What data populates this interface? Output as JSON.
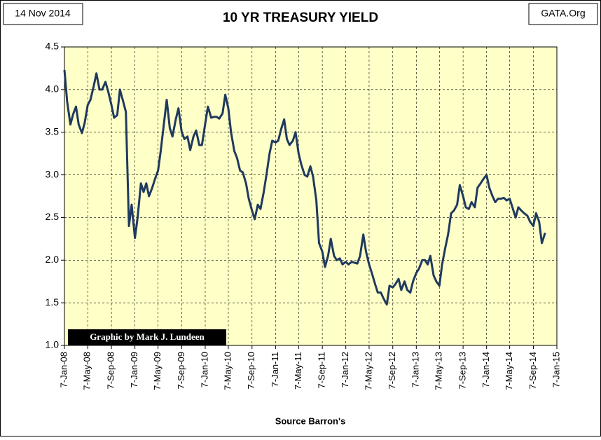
{
  "chart_data": {
    "type": "line",
    "title": "10 YR TREASURY YIELD",
    "date_label": "14 Nov 2014",
    "source_label": "GATA.Org",
    "credit": "Graphic by Mark J. Lundeen",
    "xlabel": "Source Barron's",
    "color": "#1f3a5f",
    "plot_background": "#ffffc8",
    "grid": true,
    "ylim": [
      1,
      4.5
    ],
    "yticks": [
      {
        "value": 1,
        "label": "1.0"
      },
      1.5,
      {
        "value": 2,
        "label": "2.0"
      },
      2.5,
      {
        "value": 3,
        "label": "3.0"
      },
      3.5,
      {
        "value": 4,
        "label": "4.0"
      },
      4.5
    ],
    "xlim": [
      "2008-01-07",
      "2015-01-07"
    ],
    "xticks": [
      {
        "value": "2008-01-07",
        "label": "7-Jan-08"
      },
      {
        "value": "2008-05-07",
        "label": "7-May-08"
      },
      {
        "value": "2008-09-07",
        "label": "7-Sep-08"
      },
      {
        "value": "2009-01-07",
        "label": "7-Jan-09"
      },
      {
        "value": "2009-05-07",
        "label": "7-May-09"
      },
      {
        "value": "2009-09-07",
        "label": "7-Sep-09"
      },
      {
        "value": "2010-01-07",
        "label": "7-Jan-10"
      },
      {
        "value": "2010-05-07",
        "label": "7-May-10"
      },
      {
        "value": "2010-09-07",
        "label": "7-Sep-10"
      },
      {
        "value": "2011-01-07",
        "label": "7-Jan-11"
      },
      {
        "value": "2011-05-07",
        "label": "7-May-11"
      },
      {
        "value": "2011-09-07",
        "label": "7-Sep-11"
      },
      {
        "value": "2012-01-07",
        "label": "7-Jan-12"
      },
      {
        "value": "2012-05-07",
        "label": "7-May-12"
      },
      {
        "value": "2012-09-07",
        "label": "7-Sep-12"
      },
      {
        "value": "2013-01-07",
        "label": "7-Jan-13"
      },
      {
        "value": "2013-05-07",
        "label": "7-May-13"
      },
      {
        "value": "2013-09-07",
        "label": "7-Sep-13"
      },
      {
        "value": "2014-01-07",
        "label": "7-Jan-14"
      },
      {
        "value": "2014-05-07",
        "label": "7-May-14"
      },
      {
        "value": "2014-09-07",
        "label": "7-Sep-14"
      },
      {
        "value": "2015-01-07",
        "label": "7-Jan-15"
      }
    ],
    "x": [
      "2008-01-07",
      "2008-01-21",
      "2008-02-07",
      "2008-02-21",
      "2008-03-07",
      "2008-03-21",
      "2008-04-07",
      "2008-04-21",
      "2008-05-07",
      "2008-05-21",
      "2008-06-07",
      "2008-06-21",
      "2008-07-07",
      "2008-07-21",
      "2008-08-07",
      "2008-08-21",
      "2008-09-07",
      "2008-09-21",
      "2008-10-07",
      "2008-10-21",
      "2008-11-07",
      "2008-11-21",
      "2008-12-07",
      "2008-12-21",
      "2009-01-07",
      "2009-01-21",
      "2009-02-07",
      "2009-02-21",
      "2009-03-07",
      "2009-03-21",
      "2009-04-07",
      "2009-04-21",
      "2009-05-07",
      "2009-05-21",
      "2009-06-07",
      "2009-06-21",
      "2009-07-07",
      "2009-07-21",
      "2009-08-07",
      "2009-08-21",
      "2009-09-07",
      "2009-09-21",
      "2009-10-07",
      "2009-10-21",
      "2009-11-07",
      "2009-11-21",
      "2009-12-07",
      "2009-12-21",
      "2010-01-07",
      "2010-01-21",
      "2010-02-07",
      "2010-02-21",
      "2010-03-07",
      "2010-03-21",
      "2010-04-07",
      "2010-04-21",
      "2010-05-07",
      "2010-05-21",
      "2010-06-07",
      "2010-06-21",
      "2010-07-07",
      "2010-07-21",
      "2010-08-07",
      "2010-08-21",
      "2010-09-07",
      "2010-09-21",
      "2010-10-07",
      "2010-10-21",
      "2010-11-07",
      "2010-11-21",
      "2010-12-07",
      "2010-12-21",
      "2011-01-07",
      "2011-01-21",
      "2011-02-07",
      "2011-02-21",
      "2011-03-07",
      "2011-03-21",
      "2011-04-07",
      "2011-04-21",
      "2011-05-07",
      "2011-05-21",
      "2011-06-07",
      "2011-06-21",
      "2011-07-07",
      "2011-07-21",
      "2011-08-07",
      "2011-08-21",
      "2011-09-07",
      "2011-09-21",
      "2011-10-07",
      "2011-10-21",
      "2011-11-07",
      "2011-11-21",
      "2011-12-07",
      "2011-12-21",
      "2012-01-07",
      "2012-01-21",
      "2012-02-07",
      "2012-02-21",
      "2012-03-07",
      "2012-03-21",
      "2012-04-07",
      "2012-04-21",
      "2012-05-07",
      "2012-05-21",
      "2012-06-07",
      "2012-06-21",
      "2012-07-07",
      "2012-07-21",
      "2012-08-07",
      "2012-08-21",
      "2012-09-07",
      "2012-09-21",
      "2012-10-07",
      "2012-10-21",
      "2012-11-07",
      "2012-11-21",
      "2012-12-07",
      "2012-12-21",
      "2013-01-07",
      "2013-01-21",
      "2013-02-07",
      "2013-02-21",
      "2013-03-07",
      "2013-03-21",
      "2013-04-07",
      "2013-04-21",
      "2013-05-07",
      "2013-05-21",
      "2013-06-07",
      "2013-06-21",
      "2013-07-07",
      "2013-07-21",
      "2013-08-07",
      "2013-08-21",
      "2013-09-07",
      "2013-09-21",
      "2013-10-07",
      "2013-10-21",
      "2013-11-07",
      "2013-11-21",
      "2013-12-07",
      "2013-12-21",
      "2014-01-07",
      "2014-01-21",
      "2014-02-07",
      "2014-02-21",
      "2014-03-07",
      "2014-03-21",
      "2014-04-07",
      "2014-04-21",
      "2014-05-07",
      "2014-05-21",
      "2014-06-07",
      "2014-06-21",
      "2014-07-07",
      "2014-07-21",
      "2014-08-07",
      "2014-08-21",
      "2014-09-07",
      "2014-09-21",
      "2014-10-07",
      "2014-10-21",
      "2014-11-07"
    ],
    "values": [
      4.23,
      3.86,
      3.59,
      3.71,
      3.8,
      3.59,
      3.49,
      3.61,
      3.82,
      3.88,
      4.04,
      4.19,
      4.0,
      4.0,
      4.09,
      3.98,
      3.82,
      3.67,
      3.7,
      4.0,
      3.86,
      3.74,
      2.4,
      2.65,
      2.26,
      2.5,
      2.9,
      2.8,
      2.9,
      2.75,
      2.85,
      2.95,
      3.05,
      3.28,
      3.61,
      3.88,
      3.55,
      3.45,
      3.65,
      3.78,
      3.5,
      3.42,
      3.45,
      3.29,
      3.45,
      3.52,
      3.35,
      3.35,
      3.6,
      3.8,
      3.67,
      3.68,
      3.68,
      3.66,
      3.72,
      3.94,
      3.78,
      3.5,
      3.28,
      3.2,
      3.05,
      3.03,
      2.9,
      2.72,
      2.58,
      2.48,
      2.65,
      2.6,
      2.8,
      3.0,
      3.25,
      3.4,
      3.38,
      3.4,
      3.55,
      3.65,
      3.42,
      3.35,
      3.4,
      3.5,
      3.25,
      3.12,
      3.0,
      2.98,
      3.1,
      2.98,
      2.7,
      2.2,
      2.1,
      1.92,
      2.05,
      2.25,
      2.05,
      2.0,
      2.02,
      1.95,
      1.98,
      1.95,
      1.98,
      1.97,
      1.96,
      2.05,
      2.3,
      2.1,
      1.95,
      1.85,
      1.72,
      1.62,
      1.62,
      1.55,
      1.48,
      1.7,
      1.68,
      1.72,
      1.78,
      1.65,
      1.75,
      1.65,
      1.62,
      1.75,
      1.85,
      1.9,
      2.0,
      2.0,
      1.95,
      2.05,
      1.82,
      1.75,
      1.7,
      1.95,
      2.15,
      2.3,
      2.55,
      2.58,
      2.65,
      2.88,
      2.75,
      2.62,
      2.6,
      2.68,
      2.62,
      2.85,
      2.9,
      2.95,
      3.0,
      2.85,
      2.75,
      2.68,
      2.72,
      2.72,
      2.73,
      2.7,
      2.72,
      2.62,
      2.5,
      2.62,
      2.58,
      2.55,
      2.52,
      2.45,
      2.4,
      2.55,
      2.45,
      2.2,
      2.32
    ]
  }
}
